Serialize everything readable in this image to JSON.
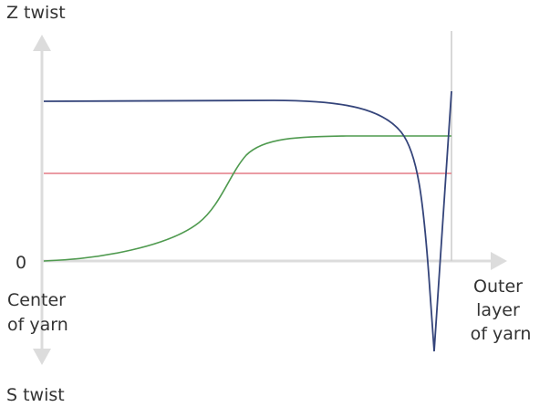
{
  "labels": {
    "y_top": "Z twist",
    "y_bottom": "S twist",
    "origin": "0",
    "x_left": [
      "Center",
      "of yarn"
    ],
    "x_right": [
      "Outer",
      "layer",
      "of yarn"
    ]
  },
  "colors": {
    "axis": "#dcdcdc",
    "boundary": "#cccccc",
    "blue_curve": "#34447a",
    "green_curve": "#4f9a4f",
    "red_line": "#e37b86",
    "text": "#333333"
  }
}
